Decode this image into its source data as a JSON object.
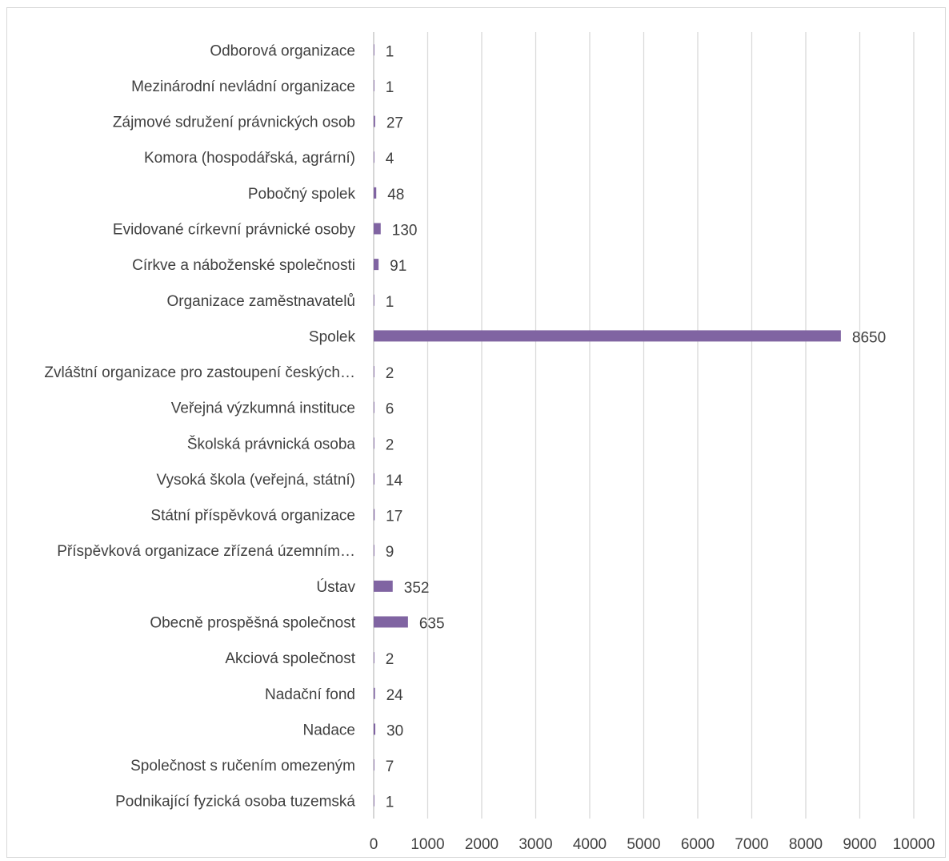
{
  "chart_data": {
    "type": "bar",
    "orientation": "horizontal",
    "categories": [
      "Odborová organizace",
      "Mezinárodní nevládní organizace",
      "Zájmové sdružení právnických osob",
      "Komora (hospodářská, agrární)",
      "Pobočný spolek",
      "Evidované církevní právnické osoby",
      "Církve a náboženské společnosti",
      "Organizace zaměstnavatelů",
      "Spolek",
      "Zvláštní organizace pro zastoupení českých…",
      "Veřejná výzkumná instituce",
      "Školská právnická osoba",
      "Vysoká škola (veřejná, státní)",
      "Státní příspěvková organizace",
      "Příspěvková organizace zřízená územním…",
      "Ústav",
      "Obecně prospěšná společnost",
      "Akciová společnost",
      "Nadační fond",
      "Nadace",
      "Společnost s ručením omezeným",
      "Podnikající fyzická osoba tuzemská"
    ],
    "values": [
      1,
      1,
      27,
      4,
      48,
      130,
      91,
      1,
      8650,
      2,
      6,
      2,
      14,
      17,
      9,
      352,
      635,
      2,
      24,
      30,
      7,
      1
    ],
    "value_labels": [
      "1",
      "1",
      "27",
      "4",
      "48",
      "130",
      "91",
      "1",
      "8650",
      "2",
      "6",
      "2",
      "14",
      "17",
      "9",
      "352",
      "635",
      "2",
      "24",
      "30",
      "7",
      "1"
    ],
    "xlim": [
      0,
      10000
    ],
    "xticks": [
      0,
      1000,
      2000,
      3000,
      4000,
      5000,
      6000,
      7000,
      8000,
      9000,
      10000
    ],
    "xtick_labels": [
      "0",
      "1000",
      "2000",
      "3000",
      "4000",
      "5000",
      "6000",
      "7000",
      "8000",
      "9000",
      "10000"
    ],
    "grid": true,
    "bar_color": "#8064a2",
    "title": "",
    "xlabel": "",
    "ylabel": ""
  }
}
